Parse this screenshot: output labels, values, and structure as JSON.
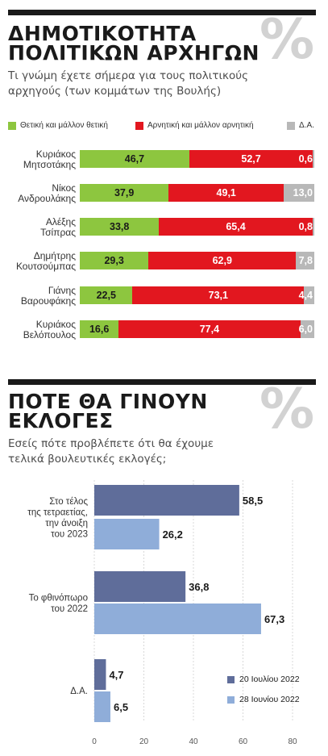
{
  "section1": {
    "title_lines": [
      "ΔΗΜΟΤΙΚΟΤΗΤΑ",
      "ΠΟΛΙΤΙΚΩΝ ΑΡΧΗΓΩΝ"
    ],
    "percent_mark": "%",
    "subtitle_lines": [
      "Τι γνώμη έχετε σήμερα για τους πολιτικούς",
      "αρχηγούς (των κομμάτων της Βουλής)"
    ]
  },
  "section2": {
    "title_lines": [
      "ΠΟΤΕ ΘΑ ΓΙΝΟΥΝ",
      "ΕΚΛΟΓΕΣ"
    ],
    "percent_mark": "%",
    "subtitle_lines": [
      "Εσείς πότε προβλέπετε ότι θα έχουμε",
      "τελικά βουλευτικές εκλογές;"
    ]
  },
  "colors": {
    "positive": "#8dc63f",
    "negative": "#e2171f",
    "na": "#b8b8b8",
    "series_jul20": "#5f6d9a",
    "series_jul28": "#8fadd9"
  },
  "chart_data": [
    {
      "type": "bar",
      "orientation": "horizontal",
      "stacked": true,
      "categories": [
        [
          "Κυριάκος",
          "Μητσοτάκης"
        ],
        [
          "Νίκος",
          "Ανδρουλάκης"
        ],
        [
          "Αλέξης",
          "Τσίπρας"
        ],
        [
          "Δημήτρης",
          "Κουτσούμπας"
        ],
        [
          "Γιάνης",
          "Βαρουφάκης"
        ],
        [
          "Κυριάκος",
          "Βελόπουλος"
        ]
      ],
      "series": [
        {
          "name": "Θετική και μάλλον θετική",
          "values": [
            46.7,
            37.9,
            33.8,
            29.3,
            22.5,
            16.6
          ],
          "labels": [
            "46,7",
            "37,9",
            "33,8",
            "29,3",
            "22,5",
            "16,6"
          ]
        },
        {
          "name": "Αρνητική και μάλλον αρνητική",
          "values": [
            52.7,
            49.1,
            65.4,
            62.9,
            73.1,
            77.4
          ],
          "labels": [
            "52,7",
            "49,1",
            "65,4",
            "62,9",
            "73,1",
            "77,4"
          ]
        },
        {
          "name": "Δ.Α.",
          "values": [
            0.6,
            13.0,
            0.8,
            7.8,
            4.4,
            6.0
          ],
          "labels": [
            "0,6",
            "13,0",
            "0,8",
            "7,8",
            "4,4",
            "6,0"
          ]
        }
      ],
      "legend_position": "top"
    },
    {
      "type": "bar",
      "orientation": "horizontal",
      "categories": [
        [
          "Στο τέλος",
          "της τετραετίας,",
          "την άνοιξη",
          "του 2023"
        ],
        [
          "Το φθινόπωρο",
          "του 2022"
        ],
        [
          "Δ.Α."
        ]
      ],
      "series": [
        {
          "name": "20 Ιουλίου 2022",
          "values": [
            58.5,
            36.8,
            4.7
          ],
          "labels": [
            "58,5",
            "36,8",
            "4,7"
          ]
        },
        {
          "name": "28 Ιουνίου 2022",
          "values": [
            26.2,
            67.3,
            6.5
          ],
          "labels": [
            "26,2",
            "67,3",
            "6,5"
          ]
        }
      ],
      "xlim": [
        0,
        80
      ],
      "xticks": [
        "0",
        "20",
        "40",
        "60",
        "80"
      ],
      "grid": true,
      "legend_position": "bottom-right"
    }
  ]
}
